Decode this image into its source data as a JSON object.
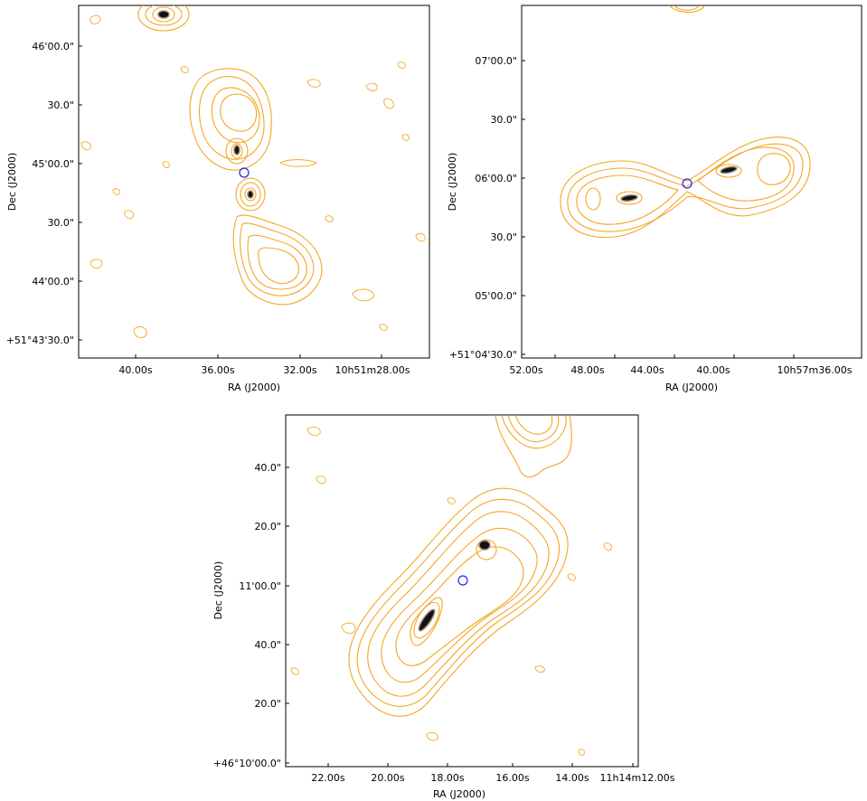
{
  "colors": {
    "contour": "#f5a623",
    "host_marker": "#2222ee",
    "frame": "#000000",
    "galaxy_core": "#111111",
    "galaxy_halo": "#9a8a70"
  },
  "panels": [
    {
      "id": "top-left",
      "xlabel": "RA (J2000)",
      "ylabel": "Dec (J2000)",
      "xticks": [
        "40.00s",
        "36.00s",
        "32.00s",
        "10h51m28.00s"
      ],
      "yticks": [
        "46'00.0\"",
        "30.0\"",
        "45'00.0\"",
        "30.0\"",
        "44'00.0\"",
        "+51°43'30.0\""
      ]
    },
    {
      "id": "top-right",
      "xlabel": "RA (J2000)",
      "ylabel": "Dec (J2000)",
      "xticks": [
        "52.00s",
        "48.00s",
        "44.00s",
        "40.00s",
        "10h57m36.00s"
      ],
      "yticks": [
        "07'00.0\"",
        "30.0\"",
        "06'00.0\"",
        "30.0\"",
        "05'00.0\"",
        "+51°04'30.0\""
      ]
    },
    {
      "id": "bottom",
      "xlabel": "RA (J2000)",
      "ylabel": "Dec (J2000)",
      "xticks": [
        "22.00s",
        "20.00s",
        "18.00s",
        "16.00s",
        "14.00s",
        "11h14m12.00s"
      ],
      "yticks": [
        "40.0\"",
        "20.0\"",
        "11'00.0\"",
        "40.0\"",
        "20.0\"",
        "+46°10'00.0\""
      ]
    }
  ]
}
